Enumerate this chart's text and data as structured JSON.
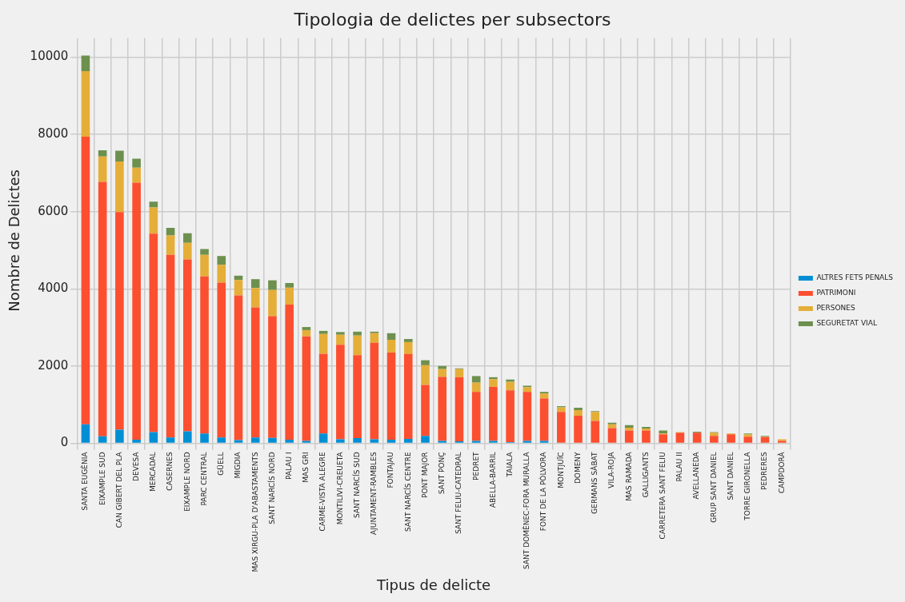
{
  "chart_data": {
    "type": "bar",
    "title": "Tipologia de delictes per subsectors",
    "xlabel": "Tipus de delicte",
    "ylabel": "Nombre de Delictes",
    "categories": [
      "SANTA EUGÈNIA",
      "EIXAMPLE SUD",
      "CAN GIBERT DEL PLA",
      "DEVESA",
      "MERCADAL",
      "CASERNES",
      "EIXAMPLE NORD",
      "PARC CENTRAL",
      "GÜELL",
      "MIGDIA",
      "MAS XIRGU-PLA D'ABASTAMENTS",
      "SANT NARCÍS NORD",
      "PALAU I",
      "MAS GRI",
      "CARME-VISTA ALEGRE",
      "MONTILIVI-CREUETA",
      "SANT NARCÍS SUD",
      "AJUNTAMENT-RAMBLES",
      "FONTAJAU",
      "SANT NARCÍS CENTRE",
      "PONT MAJOR",
      "SANT PONÇ",
      "SANT FELIU-CATEDRAL",
      "PEDRET",
      "ABELLA-BARRIL",
      "TAIALA",
      "SANT DOMÈNEC-FORA MURALLA",
      "FONT DE LA PÒLVORA",
      "MONTJUÏC",
      "DOMENY",
      "GERMANS SÀBAT",
      "VILA-ROJA",
      "MAS RAMADA",
      "GALLIGANTS",
      "CARRETERA SANT FELIU",
      "PALAU II",
      "AVELLANEDA",
      "GRUP SANT DANIEL",
      "SANT DANIEL",
      "TORRE GIRONELLA",
      "PEDRERES",
      "CAMPDORÀ"
    ],
    "stacked": true,
    "series": [
      {
        "name": "ALTRES FETS PENALS",
        "color": "#008fd5",
        "values": [
          490,
          180,
          350,
          90,
          290,
          150,
          310,
          250,
          150,
          80,
          150,
          140,
          90,
          60,
          250,
          100,
          130,
          100,
          90,
          110,
          190,
          60,
          50,
          60,
          60,
          30,
          60,
          60,
          0,
          0,
          0,
          0,
          0,
          0,
          0,
          0,
          0,
          0,
          0,
          0,
          0,
          0
        ]
      },
      {
        "name": "PATRIMONI",
        "color": "#fc4f30",
        "values": [
          7450,
          6590,
          5640,
          6660,
          5140,
          4730,
          4450,
          4070,
          4010,
          3750,
          3370,
          3150,
          3500,
          2710,
          2070,
          2450,
          2150,
          2500,
          2260,
          2200,
          1320,
          1660,
          1660,
          1270,
          1400,
          1340,
          1270,
          1100,
          810,
          710,
          580,
          390,
          330,
          330,
          230,
          270,
          270,
          190,
          230,
          170,
          160,
          60
        ]
      },
      {
        "name": "PERSONES",
        "color": "#e5ae38",
        "values": [
          1700,
          660,
          1310,
          390,
          680,
          500,
          430,
          560,
          460,
          400,
          500,
          680,
          440,
          160,
          510,
          260,
          510,
          250,
          330,
          310,
          510,
          200,
          210,
          240,
          200,
          220,
          120,
          130,
          120,
          150,
          230,
          100,
          70,
          50,
          20,
          20,
          10,
          80,
          20,
          60,
          10,
          40
        ]
      },
      {
        "name": "SEGURETAT VIAL",
        "color": "#6d904f",
        "values": [
          400,
          160,
          280,
          230,
          150,
          200,
          250,
          150,
          230,
          110,
          230,
          250,
          120,
          80,
          80,
          70,
          100,
          40,
          170,
          80,
          130,
          80,
          20,
          170,
          50,
          60,
          40,
          40,
          30,
          60,
          20,
          40,
          70,
          40,
          80,
          0,
          20,
          20,
          0,
          20,
          20,
          0
        ]
      }
    ],
    "ylim": [
      0,
      10500
    ],
    "yticks": [
      0,
      2000,
      4000,
      6000,
      8000,
      10000
    ],
    "grid": true,
    "legend": "right"
  }
}
